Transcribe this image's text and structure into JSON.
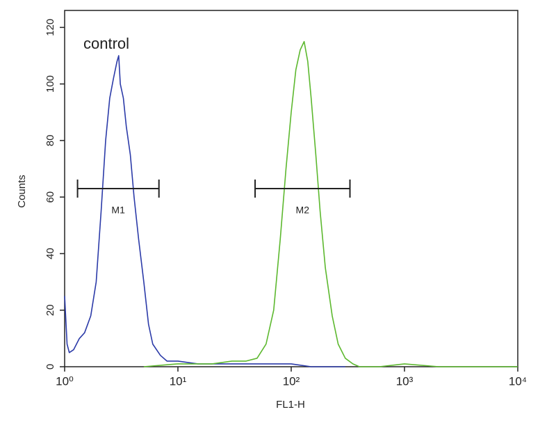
{
  "chart_data": {
    "type": "line",
    "x_label": "FL1-H",
    "y_label": "Counts",
    "annotation": "control",
    "log_x": true,
    "xlim": [
      1,
      10000
    ],
    "xticks": [
      {
        "value": 1,
        "label": "10⁰"
      },
      {
        "value": 10,
        "label": "10¹"
      },
      {
        "value": 100,
        "label": "10²"
      },
      {
        "value": 1000,
        "label": "10³"
      },
      {
        "value": 10000,
        "label": "10⁴"
      }
    ],
    "ylim": [
      0,
      126
    ],
    "yticks": [
      0,
      20,
      40,
      60,
      80,
      100,
      120
    ],
    "series": [
      {
        "color": "#2b3aa8",
        "x": [
          1.0,
          1.05,
          1.1,
          1.2,
          1.35,
          1.5,
          1.7,
          1.9,
          2.1,
          2.3,
          2.5,
          2.7,
          2.9,
          3.0,
          3.1,
          3.3,
          3.5,
          3.8,
          4.1,
          4.5,
          5.0,
          5.5,
          6.0,
          7.0,
          8.0,
          10,
          15,
          20,
          30,
          50,
          80,
          100,
          150,
          200,
          300
        ],
        "values": [
          25,
          8,
          5,
          6,
          10,
          12,
          18,
          30,
          55,
          80,
          95,
          102,
          108,
          110,
          100,
          95,
          85,
          75,
          60,
          45,
          30,
          15,
          8,
          4,
          2,
          2,
          1,
          1,
          1,
          1,
          1,
          1,
          0,
          0,
          0
        ]
      },
      {
        "color": "#5cb82e",
        "x": [
          5,
          10,
          20,
          30,
          40,
          50,
          60,
          70,
          80,
          90,
          100,
          110,
          120,
          130,
          140,
          150,
          165,
          180,
          200,
          230,
          260,
          300,
          350,
          400,
          600,
          1000,
          2000,
          5000,
          10000
        ],
        "values": [
          0,
          1,
          1,
          2,
          2,
          3,
          8,
          20,
          45,
          70,
          90,
          105,
          112,
          115,
          108,
          95,
          75,
          55,
          35,
          18,
          8,
          3,
          1,
          0,
          0,
          1,
          0,
          0,
          0
        ]
      }
    ],
    "markers": [
      {
        "label": "M1",
        "x": [
          1.3,
          6.8
        ],
        "y": 63
      },
      {
        "label": "M2",
        "x": [
          48,
          330
        ],
        "y": 63
      }
    ]
  }
}
